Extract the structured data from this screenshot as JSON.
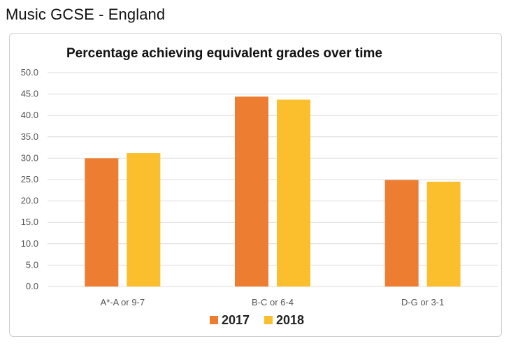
{
  "page": {
    "heading": "Music GCSE - England"
  },
  "chart_data": {
    "type": "bar",
    "title": "Percentage achieving equivalent grades over time",
    "categories": [
      "A*-A or 9-7",
      "B-C or 6-4",
      "D-G or 3-1"
    ],
    "series": [
      {
        "name": "2017",
        "values": [
          30.0,
          44.4,
          24.9
        ],
        "color": "#ed7d31"
      },
      {
        "name": "2018",
        "values": [
          31.2,
          43.7,
          24.5
        ],
        "color": "#fbbf2d"
      }
    ],
    "ylim": [
      0,
      50
    ],
    "y_ticks": [
      "0.0",
      "5.0",
      "10.0",
      "15.0",
      "20.0",
      "25.0",
      "30.0",
      "35.0",
      "40.0",
      "45.0",
      "50.0"
    ],
    "xlabel": "",
    "ylabel": "",
    "grid": true,
    "gridline_color": "#dcdcdc",
    "legend_position": "bottom"
  }
}
